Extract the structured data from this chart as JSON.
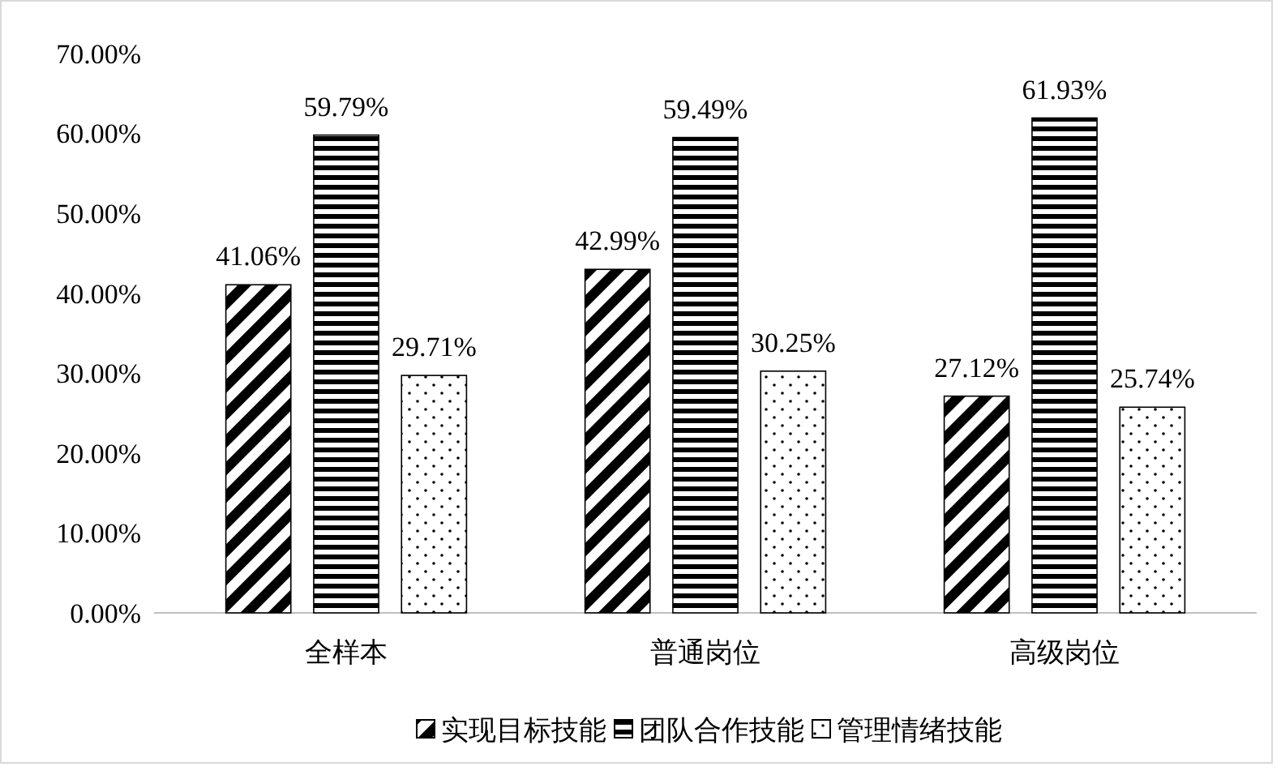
{
  "chart_data": {
    "type": "bar",
    "categories": [
      "全样本",
      "普通岗位",
      "高级岗位"
    ],
    "series": [
      {
        "name": "实现目标技能",
        "color": "#000000",
        "values": [
          41.06,
          42.99,
          27.12
        ],
        "value_labels": [
          "41.06%",
          "42.99%",
          "27.12%"
        ]
      },
      {
        "name": "团队合作技能",
        "color": "#000000",
        "values": [
          59.79,
          59.49,
          61.93
        ],
        "value_labels": [
          "59.79%",
          "59.49%",
          "61.93%"
        ]
      },
      {
        "name": "管理情绪技能",
        "color": "#000000",
        "values": [
          29.71,
          30.25,
          25.74
        ],
        "value_labels": [
          "29.71%",
          "30.25%",
          "25.74%"
        ]
      }
    ],
    "ylim": [
      0,
      70
    ],
    "yticks": [
      {
        "value": 0,
        "label": "0.00%"
      },
      {
        "value": 10,
        "label": "10.00%"
      },
      {
        "value": 20,
        "label": "20.00%"
      },
      {
        "value": 30,
        "label": "30.00%"
      },
      {
        "value": 40,
        "label": "40.00%"
      },
      {
        "value": 50,
        "label": "50.00%"
      },
      {
        "value": 60,
        "label": "60.00%"
      },
      {
        "value": 70,
        "label": "70.00%"
      }
    ],
    "grid": false,
    "legend": "bottom"
  }
}
